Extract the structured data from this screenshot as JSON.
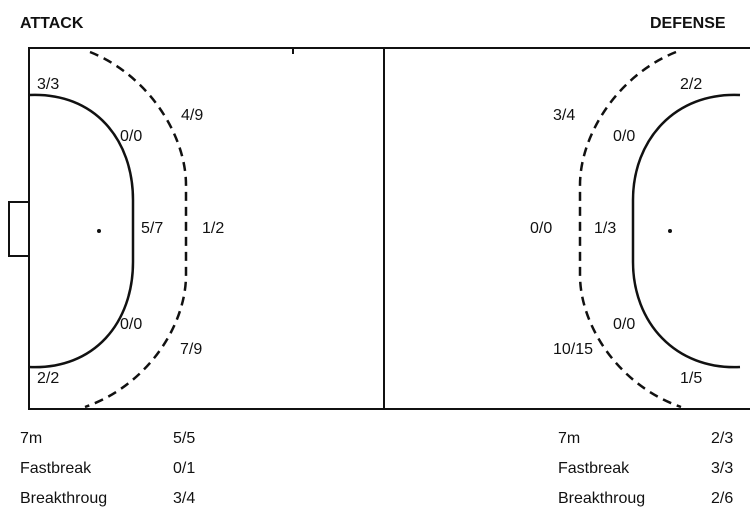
{
  "headers": {
    "attack": "ATTACK",
    "defense": "DEFENSE"
  },
  "attack": {
    "zones": {
      "left_wing_top": "3/3",
      "near_top": "0/0",
      "far_top": "4/9",
      "near_center": "5/7",
      "far_center": "1/2",
      "near_bottom": "0/0",
      "far_bottom": "7/9",
      "left_wing_bottom": "2/2"
    },
    "summary": [
      {
        "label": "7m",
        "value": "5/5"
      },
      {
        "label": "Fastbreak",
        "value": "0/1"
      },
      {
        "label": "Breakthroug",
        "value": "3/4"
      }
    ]
  },
  "defense": {
    "zones": {
      "right_wing_top": "2/2",
      "far_top": "3/4",
      "near_top": "0/0",
      "far_center": "0/0",
      "near_center": "1/3",
      "near_bottom": "0/0",
      "far_bottom": "10/15",
      "right_wing_bottom": "1/5"
    },
    "summary": [
      {
        "label": "7m",
        "value": "2/3"
      },
      {
        "label": "Fastbreak",
        "value": "3/3"
      },
      {
        "label": "Breakthroug",
        "value": "2/6"
      }
    ]
  }
}
